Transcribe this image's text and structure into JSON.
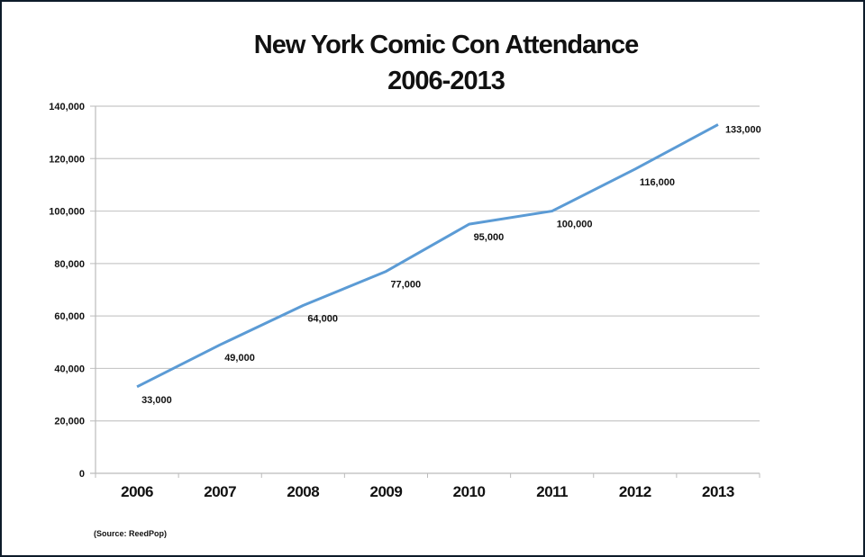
{
  "chart_data": {
    "type": "line",
    "title": [
      "New York Comic Con Attendance",
      "2006-2013"
    ],
    "categories": [
      "2006",
      "2007",
      "2008",
      "2009",
      "2010",
      "2011",
      "2012",
      "2013"
    ],
    "values": [
      33000,
      49000,
      64000,
      77000,
      95000,
      100000,
      116000,
      133000
    ],
    "data_labels": [
      "33,000",
      "49,000",
      "64,000",
      "77,000",
      "95,000",
      "100,000",
      "116,000",
      "133,000"
    ],
    "y_ticks": [
      "0",
      "20,000",
      "40,000",
      "60,000",
      "80,000",
      "100,000",
      "120,000",
      "140,000"
    ],
    "ylim": [
      0,
      140000
    ],
    "grid": true,
    "legend": "none",
    "line_color": "#5b9bd5",
    "source": "(Source: ReedPop)"
  }
}
